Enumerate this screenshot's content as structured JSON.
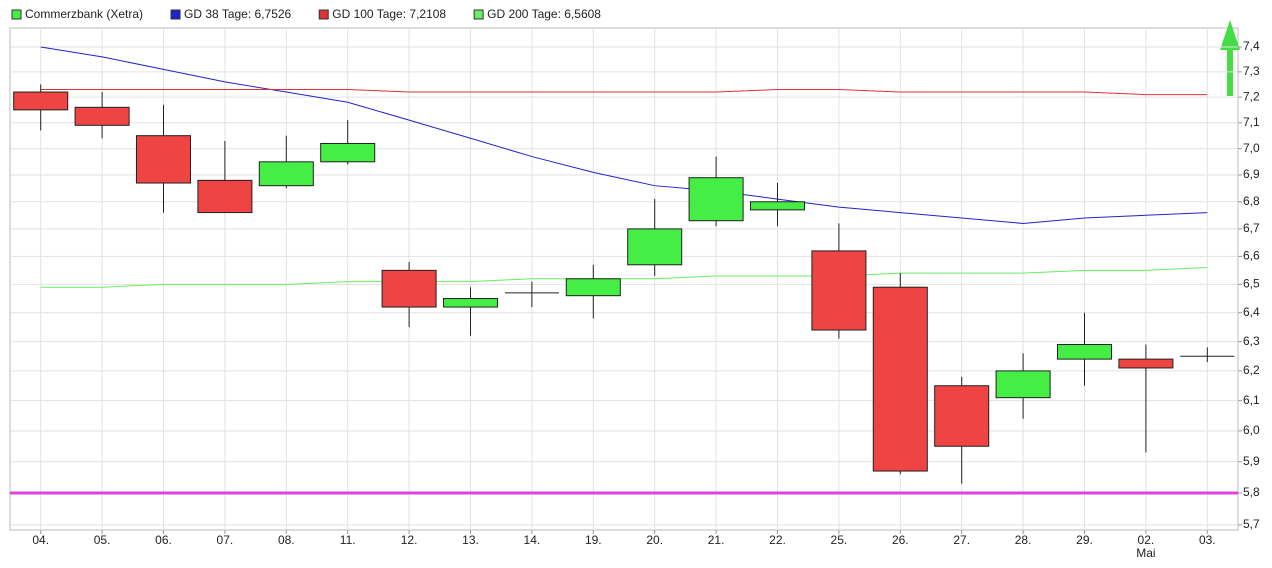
{
  "chart_data": {
    "type": "candlestick",
    "categories": [
      "04.",
      "05.",
      "06.",
      "07.",
      "08.",
      "11.",
      "12.",
      "13.",
      "14.",
      "19.",
      "20.",
      "21.",
      "22.",
      "25.",
      "26.",
      "27.",
      "28.",
      "29.",
      "02.",
      "03."
    ],
    "x_sublabels": [
      null,
      null,
      null,
      null,
      null,
      null,
      null,
      null,
      null,
      null,
      null,
      null,
      null,
      null,
      null,
      null,
      null,
      null,
      "Mai",
      null
    ],
    "name": "Commerzbank (Xetra)",
    "up_color": "#44ee44",
    "down_color": "#ee4444",
    "open": [
      7.22,
      7.16,
      7.05,
      6.88,
      6.86,
      6.95,
      6.55,
      6.42,
      6.47,
      6.46,
      6.57,
      6.73,
      6.77,
      6.62,
      6.49,
      6.15,
      6.11,
      6.24,
      6.24,
      6.25
    ],
    "high": [
      7.25,
      7.22,
      7.17,
      7.03,
      7.05,
      7.11,
      6.58,
      6.49,
      6.51,
      6.57,
      6.81,
      6.97,
      6.87,
      6.72,
      6.54,
      6.18,
      6.26,
      6.4,
      6.29,
      6.28
    ],
    "low": [
      7.07,
      7.04,
      6.76,
      6.76,
      6.85,
      6.94,
      6.35,
      6.32,
      6.42,
      6.38,
      6.53,
      6.71,
      6.71,
      6.31,
      5.86,
      5.83,
      6.04,
      6.15,
      5.93,
      6.23
    ],
    "close": [
      7.15,
      7.09,
      6.87,
      6.76,
      6.95,
      7.02,
      6.42,
      6.45,
      6.47,
      6.52,
      6.7,
      6.89,
      6.8,
      6.34,
      5.87,
      5.95,
      6.2,
      6.29,
      6.21,
      6.25
    ],
    "series": [
      {
        "name": "GD 38 Tage: 6,7526",
        "color": "#2222cc",
        "values": [
          7.4,
          7.36,
          7.31,
          7.26,
          7.22,
          7.18,
          7.11,
          7.04,
          6.97,
          6.91,
          6.86,
          6.84,
          6.81,
          6.78,
          6.76,
          6.74,
          6.72,
          6.74,
          6.75,
          6.76
        ]
      },
      {
        "name": "GD 100 Tage: 7,2108",
        "color": "#dd3333",
        "values": [
          7.23,
          7.23,
          7.23,
          7.23,
          7.23,
          7.23,
          7.22,
          7.22,
          7.22,
          7.22,
          7.22,
          7.22,
          7.23,
          7.23,
          7.22,
          7.22,
          7.22,
          7.22,
          7.21,
          7.21
        ]
      },
      {
        "name": "GD 200 Tage: 6,5608",
        "color": "#66ee66",
        "values": [
          6.49,
          6.49,
          6.5,
          6.5,
          6.5,
          6.51,
          6.51,
          6.51,
          6.52,
          6.52,
          6.52,
          6.53,
          6.53,
          6.53,
          6.54,
          6.54,
          6.54,
          6.55,
          6.55,
          6.56
        ]
      }
    ],
    "reference_line": {
      "value": 5.8,
      "color": "#e040e0"
    },
    "log_scale": true,
    "grid": true,
    "ylim": [
      5.684,
      7.477
    ],
    "yticks": [
      {
        "value": 5.7,
        "label": "5,7"
      },
      {
        "value": 5.8,
        "label": "5,8"
      },
      {
        "value": 5.9,
        "label": "5,9"
      },
      {
        "value": 6.0,
        "label": "6,0"
      },
      {
        "value": 6.1,
        "label": "6,1"
      },
      {
        "value": 6.2,
        "label": "6,2"
      },
      {
        "value": 6.3,
        "label": "6,3"
      },
      {
        "value": 6.4,
        "label": "6,4"
      },
      {
        "value": 6.5,
        "label": "6,5"
      },
      {
        "value": 6.6,
        "label": "6,6"
      },
      {
        "value": 6.7,
        "label": "6,7"
      },
      {
        "value": 6.8,
        "label": "6,8"
      },
      {
        "value": 6.9,
        "label": "6,9"
      },
      {
        "value": 7.0,
        "label": "7,0"
      },
      {
        "value": 7.1,
        "label": "7,1"
      },
      {
        "value": 7.2,
        "label": "7,2"
      },
      {
        "value": 7.3,
        "label": "7,3"
      },
      {
        "value": 7.4,
        "label": "7,4"
      }
    ]
  }
}
